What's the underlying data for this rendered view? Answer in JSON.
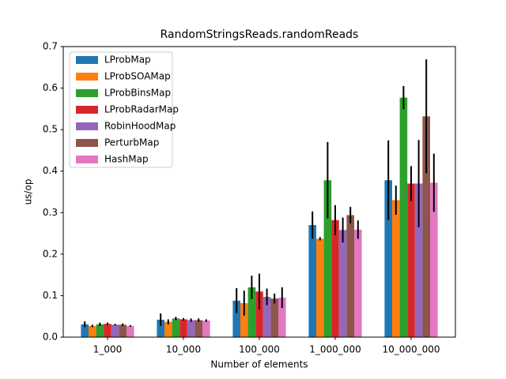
{
  "chart_data": {
    "type": "bar",
    "title": "RandomStringsReads.randomReads",
    "x_label": "Number of elements",
    "y_label": "us/op",
    "categories": [
      "1_000",
      "10_000",
      "100_000",
      "1_000_000",
      "10_000_000"
    ],
    "series": [
      {
        "name": "LProbMap",
        "color": "#1f77b4",
        "values": [
          0.031,
          0.042,
          0.088,
          0.27,
          0.378
        ],
        "errors": [
          0.007,
          0.015,
          0.03,
          0.033,
          0.096
        ]
      },
      {
        "name": "LProbSOAMap",
        "color": "#ff7f0e",
        "values": [
          0.027,
          0.037,
          0.082,
          0.237,
          0.33
        ],
        "errors": [
          0.003,
          0.006,
          0.03,
          0.004,
          0.035
        ]
      },
      {
        "name": "LProbBinsMap",
        "color": "#2ca02c",
        "values": [
          0.031,
          0.045,
          0.12,
          0.378,
          0.577
        ],
        "errors": [
          0.004,
          0.004,
          0.028,
          0.092,
          0.028
        ]
      },
      {
        "name": "LProbRadarMap",
        "color": "#d62728",
        "values": [
          0.032,
          0.043,
          0.11,
          0.282,
          0.37
        ],
        "errors": [
          0.003,
          0.003,
          0.043,
          0.036,
          0.042
        ]
      },
      {
        "name": "RobinHoodMap",
        "color": "#9467bd",
        "values": [
          0.03,
          0.041,
          0.097,
          0.258,
          0.37
        ],
        "errors": [
          0.002,
          0.004,
          0.02,
          0.03,
          0.105
        ]
      },
      {
        "name": "PerturbMap",
        "color": "#8c564b",
        "values": [
          0.03,
          0.041,
          0.093,
          0.294,
          0.532
        ],
        "errors": [
          0.003,
          0.004,
          0.012,
          0.02,
          0.137
        ]
      },
      {
        "name": "HashMap",
        "color": "#e377c2",
        "values": [
          0.027,
          0.04,
          0.095,
          0.259,
          0.372
        ],
        "errors": [
          0.002,
          0.003,
          0.025,
          0.022,
          0.07
        ]
      }
    ],
    "ylim": [
      0,
      0.7
    ],
    "yticks": [
      {
        "value": 0,
        "label": "0.0"
      },
      0.1,
      0.2,
      0.3,
      0.4,
      0.5,
      0.6,
      0.7
    ],
    "legend": "upper left"
  }
}
